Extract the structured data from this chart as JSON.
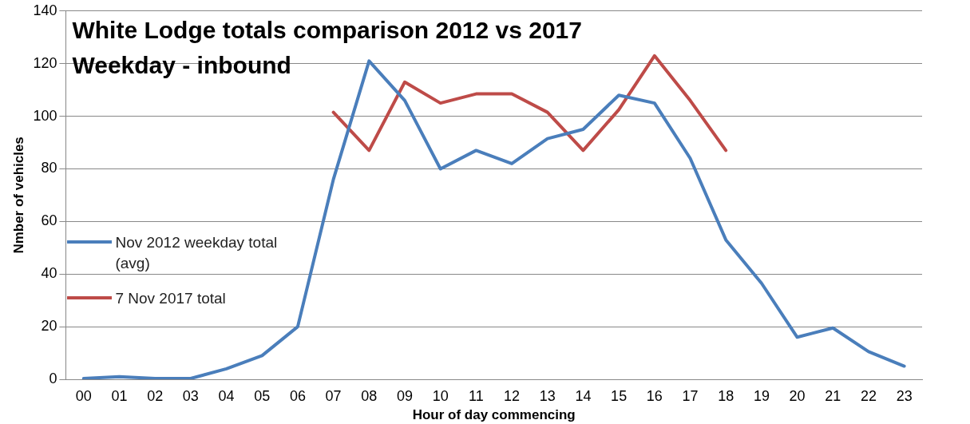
{
  "chart_data": {
    "type": "line",
    "title": "White Lodge totals comparison  2012 vs 2017\nWeekday - inbound",
    "xlabel": "Hour of day commencing",
    "ylabel": "Nmber of vehicles",
    "categories": [
      "00",
      "01",
      "02",
      "03",
      "04",
      "05",
      "06",
      "07",
      "08",
      "09",
      "10",
      "11",
      "12",
      "13",
      "14",
      "15",
      "16",
      "17",
      "18",
      "19",
      "20",
      "21",
      "22",
      "23"
    ],
    "series": [
      {
        "name": "Nov 2012 weekday total (avg)",
        "color": "#4a7ebb",
        "values": [
          0.3,
          1,
          0.3,
          0.3,
          4,
          9,
          20,
          76,
          121,
          106,
          80,
          87,
          82,
          91.5,
          95,
          108,
          105,
          84,
          53,
          36.5,
          16,
          19.5,
          10.5,
          5
        ]
      },
      {
        "name": "7 Nov 2017 total",
        "color": "#be4b48",
        "values": [
          null,
          null,
          null,
          null,
          null,
          null,
          null,
          101.5,
          87,
          113,
          105,
          108.5,
          108.5,
          101.5,
          87,
          102.5,
          123,
          106,
          87,
          null,
          null,
          null,
          null,
          null
        ]
      }
    ],
    "ylim": [
      0,
      140
    ],
    "yticks": [
      0,
      20,
      40,
      60,
      80,
      100,
      120,
      140
    ],
    "grid": "y",
    "legend": "left",
    "marker": "none",
    "line_style": "solid"
  }
}
